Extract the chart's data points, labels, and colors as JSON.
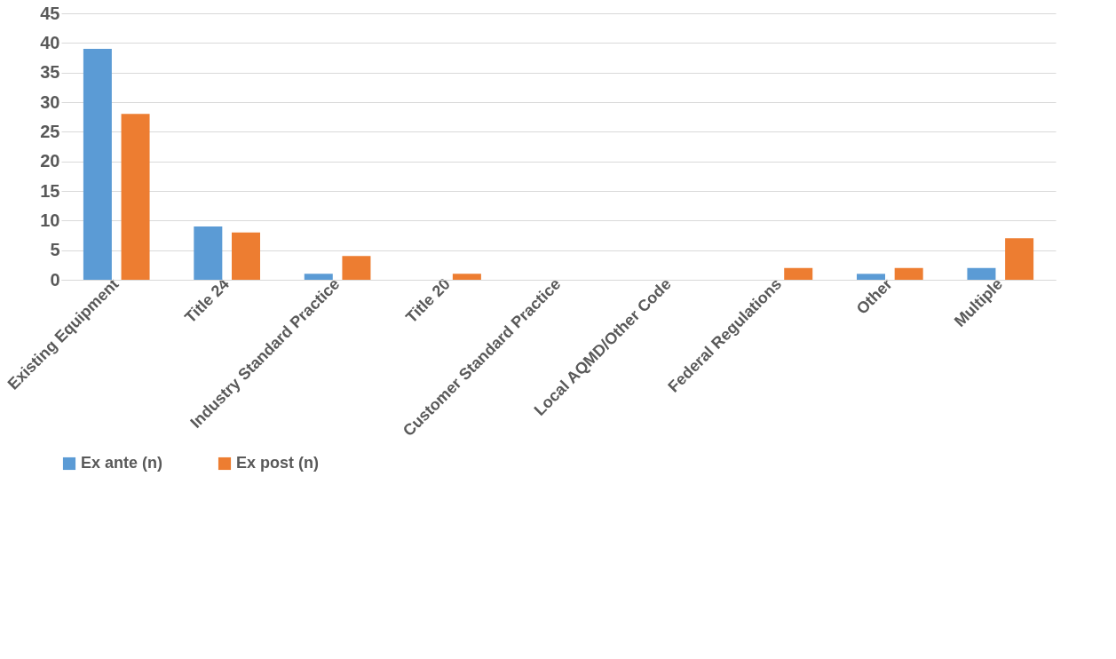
{
  "chart_data": {
    "type": "bar",
    "categories": [
      "Existing Equipment",
      "Title 24",
      "Industry Standard Practice",
      "Title 20",
      "Customer Standard Practice",
      "Local AQMD/Other Code",
      "Federal Regulations",
      "Other",
      "Multiple"
    ],
    "series": [
      {
        "name": "Ex ante (n)",
        "color": "#5b9bd5",
        "values": [
          39,
          9,
          1,
          0,
          0,
          0,
          0,
          1,
          2
        ]
      },
      {
        "name": "Ex post (n)",
        "color": "#ed7d31",
        "values": [
          28,
          8,
          4,
          1,
          0,
          0,
          2,
          2,
          7
        ]
      }
    ],
    "ylim": [
      0,
      45
    ],
    "yticks": [
      0,
      5,
      10,
      15,
      20,
      25,
      30,
      35,
      40,
      45
    ],
    "grid": "y",
    "legend": "bottom"
  }
}
